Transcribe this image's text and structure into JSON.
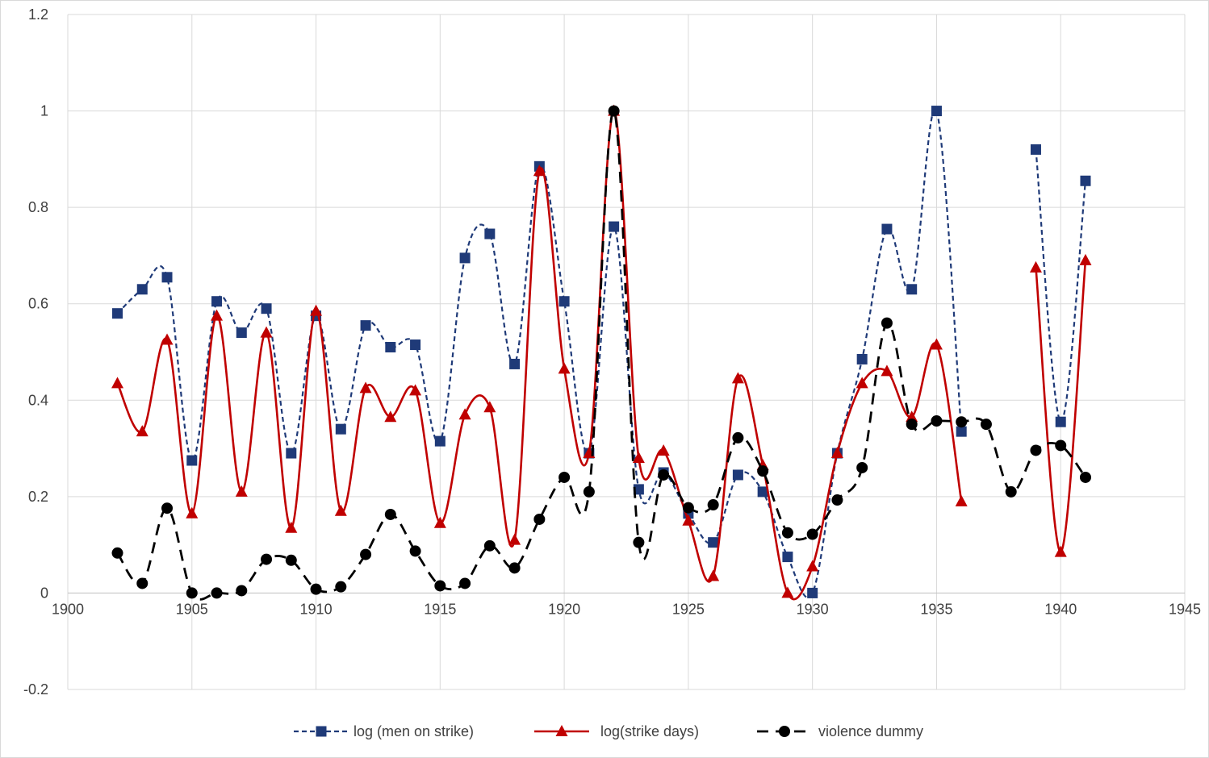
{
  "chart_data": {
    "type": "line",
    "title": "",
    "xlabel": "",
    "ylabel": "",
    "xlim": [
      1900,
      1945
    ],
    "ylim": [
      -0.2,
      1.2
    ],
    "x_ticks": [
      "1900",
      "1905",
      "1910",
      "1915",
      "1920",
      "1925",
      "1930",
      "1935",
      "1940",
      "1945"
    ],
    "y_ticks": [
      "-0.2",
      "0",
      "0.2",
      "0.4",
      "0.6",
      "0.8",
      "1",
      "1.2"
    ],
    "grid": "vertical and horizontal major gridlines",
    "legend_position": "bottom",
    "smoothed_lines": true,
    "series": [
      {
        "name": "log (men on strike)",
        "color": "#1f3a78",
        "line_style": "dotted",
        "marker": "square",
        "x": [
          1902,
          1903,
          1904,
          1905,
          1906,
          1907,
          1908,
          1909,
          1910,
          1911,
          1912,
          1913,
          1914,
          1915,
          1916,
          1917,
          1918,
          1919,
          1920,
          1921,
          1922,
          1923,
          1924,
          1925,
          1926,
          1927,
          1928,
          1929,
          1930,
          1931,
          1932,
          1933,
          1934,
          1935,
          1936,
          1937,
          1938,
          1939,
          1940,
          1941
        ],
        "y": [
          0.58,
          0.63,
          0.655,
          0.275,
          0.605,
          0.54,
          0.59,
          0.29,
          0.575,
          0.34,
          0.555,
          0.51,
          0.515,
          0.315,
          0.695,
          0.745,
          0.475,
          0.885,
          0.605,
          0.29,
          0.76,
          0.215,
          0.25,
          0.165,
          0.105,
          0.245,
          0.21,
          0.075,
          0.0,
          0.29,
          0.485,
          0.755,
          0.63,
          1.0,
          0.335,
          null,
          null,
          0.92,
          0.355,
          0.855
        ]
      },
      {
        "name": "log(strike days)",
        "color": "#c00000",
        "line_style": "solid",
        "marker": "triangle",
        "x": [
          1902,
          1903,
          1904,
          1905,
          1906,
          1907,
          1908,
          1909,
          1910,
          1911,
          1912,
          1913,
          1914,
          1915,
          1916,
          1917,
          1918,
          1919,
          1920,
          1921,
          1922,
          1923,
          1924,
          1925,
          1926,
          1927,
          1928,
          1929,
          1930,
          1931,
          1932,
          1933,
          1934,
          1935,
          1936,
          1937,
          1938,
          1939,
          1940,
          1941
        ],
        "y": [
          0.435,
          0.335,
          0.525,
          0.165,
          0.575,
          0.21,
          0.54,
          0.135,
          0.585,
          0.17,
          0.425,
          0.365,
          0.42,
          0.145,
          0.37,
          0.385,
          0.11,
          0.875,
          0.465,
          0.29,
          1.0,
          0.28,
          0.295,
          0.15,
          0.035,
          0.445,
          0.265,
          0.0,
          0.055,
          0.29,
          0.435,
          0.46,
          0.365,
          0.515,
          0.19,
          null,
          null,
          0.675,
          0.085,
          0.69
        ]
      },
      {
        "name": "violence dummy",
        "color": "#000000",
        "line_style": "dashed",
        "marker": "circle",
        "x": [
          1902,
          1903,
          1904,
          1905,
          1906,
          1907,
          1908,
          1909,
          1910,
          1911,
          1912,
          1913,
          1914,
          1915,
          1916,
          1917,
          1918,
          1919,
          1920,
          1921,
          1922,
          1923,
          1924,
          1925,
          1926,
          1927,
          1928,
          1929,
          1930,
          1931,
          1932,
          1933,
          1934,
          1935,
          1936,
          1937,
          1938,
          1939,
          1940,
          1941
        ],
        "y": [
          0.083,
          0.02,
          0.176,
          0.0,
          0.0,
          0.005,
          0.07,
          0.068,
          0.008,
          0.013,
          0.08,
          0.163,
          0.087,
          0.015,
          0.02,
          0.098,
          0.052,
          0.153,
          0.24,
          0.21,
          1.0,
          0.105,
          0.245,
          0.177,
          0.183,
          0.322,
          0.253,
          0.125,
          0.122,
          0.193,
          0.26,
          0.56,
          0.35,
          0.357,
          0.355,
          0.35,
          0.21,
          0.296,
          0.306,
          0.24
        ]
      }
    ]
  }
}
